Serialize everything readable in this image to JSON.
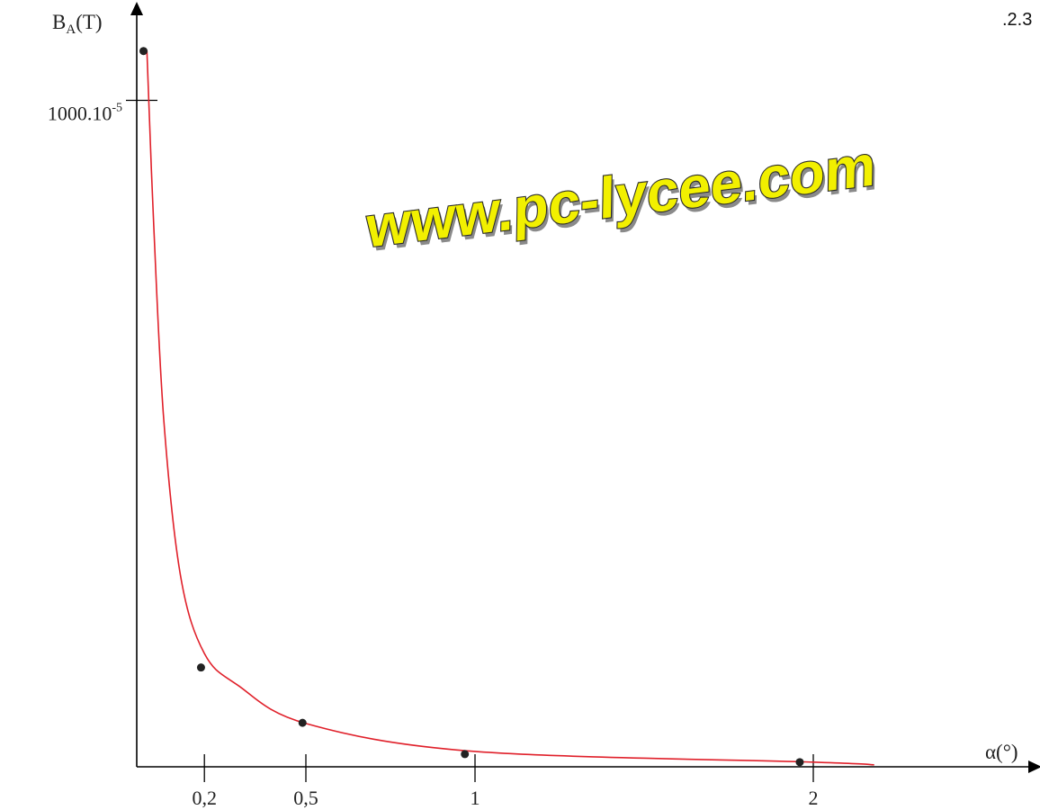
{
  "corner_label": ".2.3",
  "watermark": "www.pc-lycee.com",
  "colors": {
    "curve": "#e0202a",
    "points": "#222222",
    "axes": "#000000",
    "watermark_fill": "#f2f000"
  },
  "chart_data": {
    "type": "scatter",
    "xlabel": "α(°)",
    "ylabel": "B",
    "ylabel_sub": "A",
    "ylabel_unit": "(T)",
    "x_ticks": [
      {
        "value": 0.2,
        "label": "0,2"
      },
      {
        "value": 0.5,
        "label": "0,5"
      },
      {
        "value": 1,
        "label": "1"
      },
      {
        "value": 2,
        "label": "2"
      }
    ],
    "y_ticks": [
      {
        "value": 1000,
        "label": "1000.10",
        "exponent": "-5"
      }
    ],
    "xlim": [
      0,
      2.7
    ],
    "ylim": [
      0,
      1100
    ],
    "y_scale_factor": "1e-5",
    "grid": false,
    "series": [
      {
        "type": "scatter",
        "points": [
          {
            "x": 0.02,
            "y": 1074
          },
          {
            "x": 0.19,
            "y": 149
          },
          {
            "x": 0.49,
            "y": 66
          },
          {
            "x": 0.97,
            "y": 19
          },
          {
            "x": 1.96,
            "y": 7
          }
        ]
      },
      {
        "type": "line",
        "points": [
          {
            "x": 0.03,
            "y": 1075
          },
          {
            "x": 0.05,
            "y": 815
          },
          {
            "x": 0.08,
            "y": 520
          },
          {
            "x": 0.13,
            "y": 285
          },
          {
            "x": 0.2,
            "y": 170
          },
          {
            "x": 0.3,
            "y": 122
          },
          {
            "x": 0.5,
            "y": 65
          },
          {
            "x": 1,
            "y": 23
          },
          {
            "x": 2,
            "y": 7
          },
          {
            "x": 2.18,
            "y": 3
          }
        ]
      }
    ]
  }
}
